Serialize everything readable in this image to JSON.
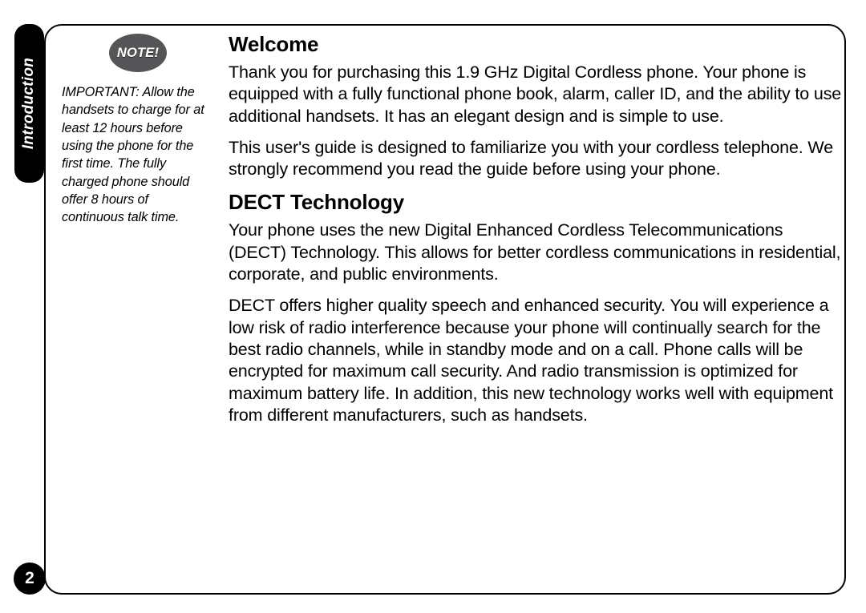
{
  "tab": {
    "label": "Introduction"
  },
  "pageNumber": "2",
  "note": {
    "badge": "NOTE!",
    "text": "IMPORTANT: Allow the handsets to charge for at least 12 hours before using the phone for the first time. The fully charged phone should offer 8 hours of continuous talk time."
  },
  "sections": {
    "welcome": {
      "heading": "Welcome",
      "p1": "Thank you for purchasing this 1.9 GHz Digital Cordless phone. Your phone is equipped with a fully functional phone book, alarm, caller ID, and the ability to use additional handsets. It has an elegant design and is simple to use.",
      "p2": "This user's guide is designed to familiarize you with your cordless telephone. We strongly recommend you read the guide before using your phone."
    },
    "dect": {
      "heading": "DECT Technology",
      "p1": "Your phone uses the new Digital Enhanced Cordless Telecommunications (DECT) Technology. This allows for better cordless communications in residential, corporate, and public environments.",
      "p2": "DECT offers higher quality speech and enhanced security. You will experience a low risk of radio interference because your phone will continually search for the best radio channels, while in standby mode and on a call. Phone calls will be encrypted for maximum call security. And radio transmission is optimized for maximum battery life. In addition, this new technology works well with equipment from different manufacturers, such as handsets."
    }
  },
  "colors": {
    "frameBorder": "#000000",
    "tabBg": "#000000",
    "noteBadgeBg": "#555456",
    "textColor": "#000000",
    "pageBg": "#ffffff"
  }
}
